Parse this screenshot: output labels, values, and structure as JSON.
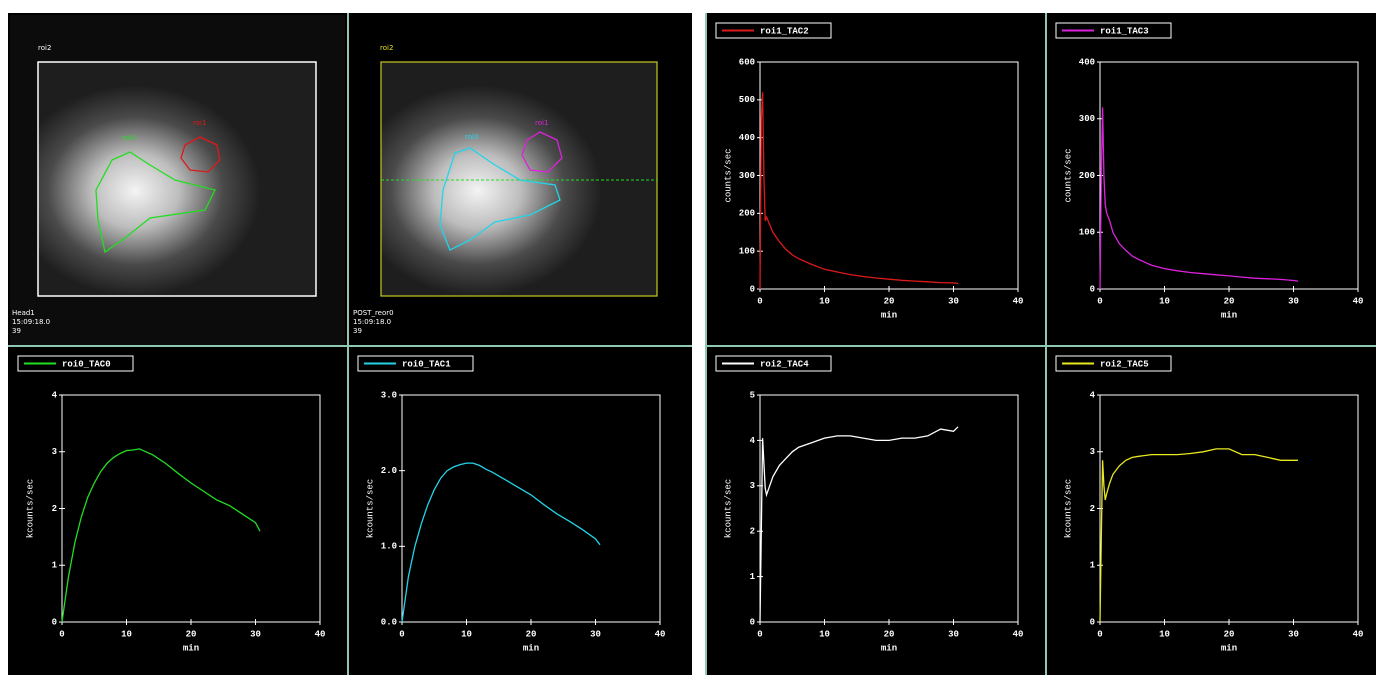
{
  "images": [
    {
      "roi_labels": [
        "roi2",
        "roi0",
        "roi1"
      ],
      "footer": [
        "Head1",
        "15:09:18.0",
        "39"
      ]
    },
    {
      "roi_labels": [
        "roi2",
        "roi0",
        "roi1"
      ],
      "footer": [
        "POST_reor0",
        "15:09:18.0",
        "39"
      ]
    }
  ],
  "chart_data": [
    {
      "type": "line",
      "x_label": "min",
      "y_label": "kcounts/sec",
      "xlim": [
        0,
        40
      ],
      "xticks": [
        0,
        10,
        20,
        30,
        40
      ],
      "ylim": [
        0,
        4
      ],
      "yticks": [
        0,
        1,
        2,
        3,
        4
      ],
      "x": [
        0,
        0.5,
        1,
        2,
        3,
        4,
        5,
        6,
        7,
        8,
        9,
        10,
        11,
        12,
        13,
        14,
        16,
        18,
        20,
        22,
        24,
        26,
        28,
        30,
        30.7
      ],
      "series": [
        {
          "name": "roi0_TAC0",
          "color": "#22dd22",
          "values": [
            0,
            0.4,
            0.8,
            1.4,
            1.85,
            2.2,
            2.45,
            2.65,
            2.8,
            2.9,
            2.97,
            3.02,
            3.03,
            3.05,
            3.0,
            2.95,
            2.8,
            2.62,
            2.45,
            2.3,
            2.15,
            2.05,
            1.9,
            1.75,
            1.6
          ]
        }
      ]
    },
    {
      "type": "line",
      "x_label": "min",
      "y_label": "kcounts/sec",
      "xlim": [
        0,
        40
      ],
      "xticks": [
        0,
        10,
        20,
        30,
        40
      ],
      "ylim": [
        0,
        3
      ],
      "yticks": [
        {
          "value": 0,
          "label": "0.0"
        },
        {
          "value": 1,
          "label": "1.0"
        },
        {
          "value": 2,
          "label": "2.0"
        },
        {
          "value": 3,
          "label": "3.0"
        }
      ],
      "x": [
        0,
        0.5,
        1,
        2,
        3,
        4,
        5,
        6,
        7,
        8,
        9,
        10,
        11,
        12,
        13,
        14,
        16,
        18,
        20,
        22,
        24,
        26,
        28,
        30,
        30.7
      ],
      "series": [
        {
          "name": "roi0_TAC1",
          "color": "#22d4e8",
          "values": [
            0,
            0.3,
            0.6,
            1.0,
            1.3,
            1.55,
            1.75,
            1.9,
            2.0,
            2.05,
            2.08,
            2.1,
            2.1,
            2.07,
            2.02,
            1.98,
            1.88,
            1.78,
            1.68,
            1.55,
            1.43,
            1.33,
            1.22,
            1.1,
            1.02
          ]
        }
      ]
    },
    {
      "type": "line",
      "x_label": "min",
      "y_label": "counts/sec",
      "xlim": [
        0,
        40
      ],
      "xticks": [
        0,
        10,
        20,
        30,
        40
      ],
      "ylim": [
        0,
        600
      ],
      "yticks": [
        0,
        100,
        200,
        300,
        400,
        500,
        600
      ],
      "x": [
        0,
        0.2,
        0.4,
        0.6,
        0.8,
        1,
        1.5,
        2,
        3,
        4,
        5,
        6,
        8,
        10,
        12,
        14,
        16,
        18,
        20,
        22,
        24,
        26,
        28,
        30,
        30.7
      ],
      "series": [
        {
          "name": "roi1_TAC2",
          "color": "#dd1a1a",
          "values": [
            0,
            450,
            520,
            300,
            180,
            190,
            170,
            150,
            125,
            105,
            90,
            80,
            65,
            52,
            45,
            38,
            33,
            29,
            26,
            23,
            21,
            19,
            17,
            16,
            15
          ]
        }
      ]
    },
    {
      "type": "line",
      "x_label": "min",
      "y_label": "counts/sec",
      "xlim": [
        0,
        40
      ],
      "xticks": [
        0,
        10,
        20,
        30,
        40
      ],
      "ylim": [
        0,
        400
      ],
      "yticks": [
        0,
        100,
        200,
        300,
        400
      ],
      "x": [
        0,
        0.2,
        0.4,
        0.6,
        0.8,
        1,
        1.5,
        2,
        3,
        4,
        5,
        6,
        8,
        10,
        12,
        14,
        16,
        18,
        20,
        22,
        24,
        26,
        28,
        30,
        30.7
      ],
      "series": [
        {
          "name": "roi1_TAC3",
          "color": "#dd22dd",
          "values": [
            0,
            200,
            320,
            200,
            150,
            135,
            120,
            100,
            80,
            68,
            58,
            52,
            42,
            36,
            32,
            29,
            27,
            25,
            23,
            21,
            19,
            18,
            17,
            15,
            14
          ]
        }
      ]
    },
    {
      "type": "line",
      "x_label": "min",
      "y_label": "kcounts/sec",
      "xlim": [
        0,
        40
      ],
      "xticks": [
        0,
        10,
        20,
        30,
        40
      ],
      "ylim": [
        0,
        5
      ],
      "yticks": [
        0,
        1,
        2,
        3,
        4,
        5
      ],
      "x": [
        0,
        0.2,
        0.4,
        0.6,
        0.8,
        1,
        1.5,
        2,
        3,
        4,
        5,
        6,
        8,
        10,
        12,
        14,
        16,
        18,
        20,
        22,
        24,
        26,
        28,
        30,
        30.7
      ],
      "series": [
        {
          "name": "roi2_TAC4",
          "color": "#ffffff",
          "values": [
            0,
            2,
            4.05,
            3.5,
            2.95,
            2.8,
            3.0,
            3.2,
            3.45,
            3.6,
            3.75,
            3.85,
            3.95,
            4.05,
            4.1,
            4.1,
            4.05,
            4.0,
            4.0,
            4.05,
            4.05,
            4.1,
            4.25,
            4.2,
            4.3
          ]
        }
      ]
    },
    {
      "type": "line",
      "x_label": "min",
      "y_label": "kcounts/sec",
      "xlim": [
        0,
        40
      ],
      "xticks": [
        0,
        10,
        20,
        30,
        40
      ],
      "ylim": [
        0,
        4
      ],
      "yticks": [
        0,
        1,
        2,
        3,
        4
      ],
      "x": [
        0,
        0.2,
        0.4,
        0.6,
        0.8,
        1,
        1.5,
        2,
        3,
        4,
        5,
        6,
        8,
        10,
        12,
        14,
        16,
        18,
        20,
        22,
        24,
        26,
        28,
        30,
        30.7
      ],
      "series": [
        {
          "name": "roi2_TAC5",
          "color": "#e8e822",
          "values": [
            0,
            1.5,
            2.85,
            2.4,
            2.15,
            2.25,
            2.45,
            2.6,
            2.75,
            2.85,
            2.9,
            2.92,
            2.95,
            2.95,
            2.95,
            2.97,
            3.0,
            3.05,
            3.05,
            2.95,
            2.95,
            2.9,
            2.85,
            2.85,
            2.85
          ]
        }
      ]
    }
  ]
}
